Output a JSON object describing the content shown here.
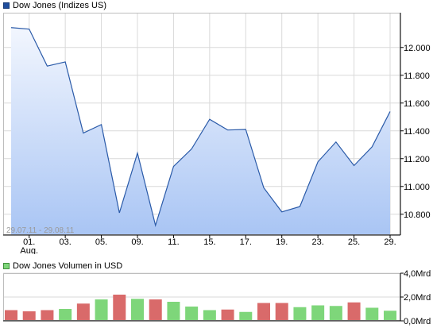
{
  "colors": {
    "price_line": "#2a5aa8",
    "price_fill_top": "#f2f6fe",
    "price_fill_bottom": "#a9c5f4",
    "grid": "#d9d9d9",
    "frame": "#000000",
    "volume_up": "#7ed67a",
    "volume_down": "#d96a6a",
    "legend_price": "#1f4e9e",
    "legend_volume": "#7ed67a"
  },
  "chart_data": [
    {
      "type": "area",
      "legend": "Dow Jones (Indizes US)",
      "range_label": "29.07.11 - 29.08.11",
      "ylim": [
        10650,
        12250
      ],
      "yticks": [
        10800,
        11000,
        11200,
        11400,
        11600,
        11800,
        12000
      ],
      "ytick_labels": [
        "10.800",
        "11.000",
        "11.200",
        "11.400",
        "11.600",
        "11.800",
        "12.000"
      ],
      "grid": true,
      "xticks": [
        {
          "day": "01.",
          "month": "Aug.",
          "index": 1
        },
        {
          "day": "03.",
          "index": 3
        },
        {
          "day": "05.",
          "index": 5
        },
        {
          "day": "09.",
          "index": 7
        },
        {
          "day": "11.",
          "index": 9
        },
        {
          "day": "15.",
          "index": 11
        },
        {
          "day": "17.",
          "index": 13
        },
        {
          "day": "19.",
          "index": 15
        },
        {
          "day": "23.",
          "index": 17
        },
        {
          "day": "25.",
          "index": 19
        },
        {
          "day": "29.",
          "index": 21
        }
      ],
      "dates": [
        "29.07.",
        "01.08.",
        "02.08.",
        "03.08.",
        "04.08.",
        "05.08.",
        "08.08.",
        "09.08.",
        "10.08.",
        "11.08.",
        "12.08.",
        "15.08.",
        "16.08.",
        "17.08.",
        "18.08.",
        "19.08.",
        "22.08.",
        "23.08.",
        "24.08.",
        "25.08.",
        "26.08.",
        "29.08."
      ],
      "values": [
        12143,
        12132,
        11866,
        11896,
        11384,
        11445,
        10810,
        11240,
        10720,
        11144,
        11270,
        11483,
        11406,
        11410,
        10990,
        10817,
        10855,
        11177,
        11320,
        11150,
        11285,
        11539
      ]
    },
    {
      "type": "bar",
      "legend": "Dow Jones Volumen in USD",
      "ylim": [
        0,
        4
      ],
      "yticks": [
        0,
        2,
        4
      ],
      "ytick_labels": [
        "0,0Mrd",
        "2,0Mrd",
        "4,0Mrd"
      ],
      "grid": true,
      "values": [
        0.9,
        0.8,
        0.9,
        1.0,
        1.45,
        1.8,
        2.2,
        1.85,
        1.8,
        1.6,
        1.2,
        0.9,
        0.95,
        0.75,
        1.5,
        1.5,
        1.15,
        1.3,
        1.25,
        1.55,
        1.1,
        0.85
      ],
      "direction": [
        "down",
        "down",
        "down",
        "up",
        "down",
        "up",
        "down",
        "up",
        "down",
        "up",
        "up",
        "up",
        "down",
        "up",
        "down",
        "down",
        "up",
        "up",
        "up",
        "down",
        "up",
        "up"
      ]
    }
  ]
}
